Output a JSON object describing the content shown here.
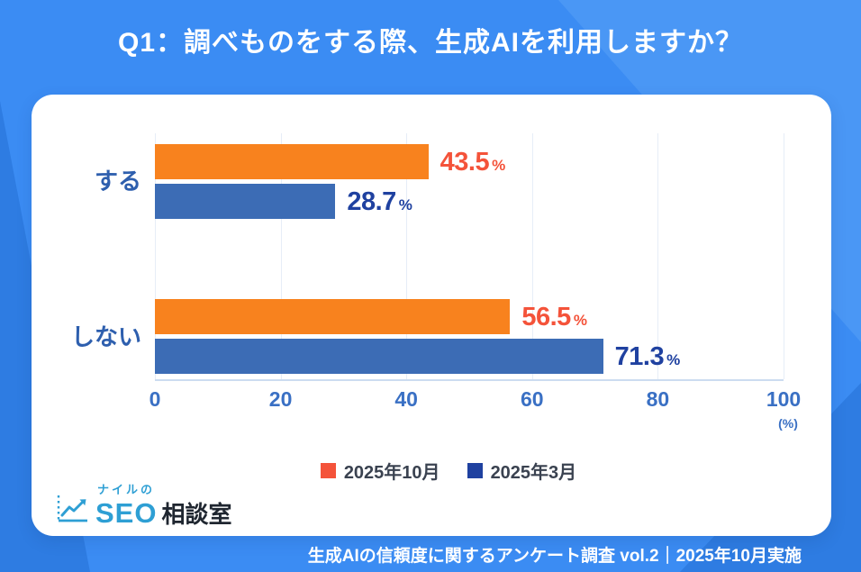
{
  "header": {
    "title": "Q1：調べものをする際、生成AIを利用しますか？"
  },
  "chart_data": {
    "type": "bar",
    "orientation": "horizontal",
    "title": "",
    "categories": [
      "する",
      "しない"
    ],
    "series": [
      {
        "name": "2025年10月",
        "values": [
          43.5,
          56.5
        ],
        "bar_color": "#F8821E",
        "label_color": "#F4533A"
      },
      {
        "name": "2025年3月",
        "values": [
          28.7,
          71.3
        ],
        "bar_color": "#3C6CB5",
        "label_color": "#1F41A0"
      }
    ],
    "xlim": [
      0,
      100
    ],
    "xticks": [
      0,
      20,
      40,
      60,
      80,
      100
    ],
    "unit_label": "(%)",
    "percent_suffix": "%",
    "grid": true,
    "legend_position": "bottom"
  },
  "logo": {
    "top": "ナイルの",
    "seo": "SEO",
    "soudan": "相談室",
    "icon": "line-chart-icon"
  },
  "footer": {
    "text": "生成AIの信頼度に関するアンケート調査 vol.2｜2025年10月実施"
  },
  "colors": {
    "background": "#3B8CF3",
    "background_light": "#4A97F5",
    "background_dark": "#2E7CE2",
    "card": "#FFFFFF",
    "category_label": "#2E5FAE",
    "tick_label": "#3A70C4",
    "legend_text": "#3A4250",
    "footer_text": "#FFFFFF",
    "logo_blue": "#2E9FD4",
    "logo_dark": "#1F2630",
    "gridline": "#E6EDF7"
  }
}
